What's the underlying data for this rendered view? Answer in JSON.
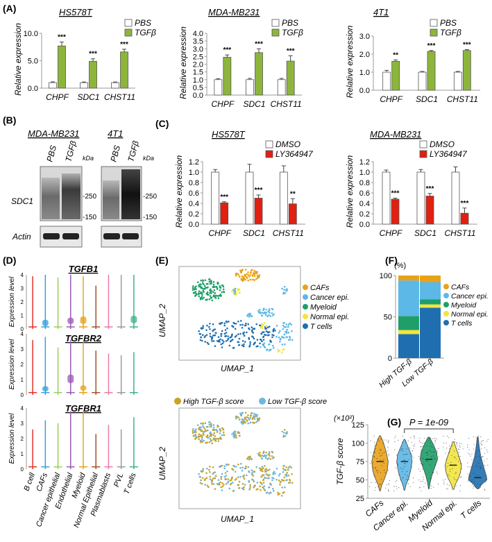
{
  "figure": {
    "panel_labels": {
      "A": "(A)",
      "B": "(B)",
      "C": "(C)",
      "D": "(D)",
      "E": "(E)",
      "F": "(F)",
      "G": "(G)"
    },
    "colors": {
      "pbs": "#ffffff",
      "tgf": "#8db53c",
      "dmso": "#ffffff",
      "ly": "#e02010",
      "caf": "#e8a21a",
      "cancer": "#5cb8e6",
      "myeloid": "#1f9e6a",
      "normal": "#f1e540",
      "tcell": "#1f6fb0",
      "vlnB": "#e8302a",
      "vlnCAF": "#35a0db",
      "vlnCancer": "#9bcd5b",
      "vlnEndo": "#9b59b6",
      "vlnMyeloid": "#e8a21a",
      "vlnNormal": "#a0522d",
      "vlnPlasma": "#e87aa8",
      "vlnPVL": "#9a9a9a",
      "vlnT": "#3fb08c"
    },
    "star_labels": [
      "***",
      "***",
      "***",
      "***",
      "***",
      "***",
      "**",
      "***",
      "***",
      "***",
      "***",
      "**",
      "***",
      "***",
      "***"
    ],
    "kda_labels": [
      "kDa",
      "kDa",
      "-250",
      "-150",
      "-250",
      "-150"
    ]
  },
  "chart_data": [
    {
      "type": "bar",
      "panel": "A",
      "title": "HS578T",
      "ylabel": "Relative expression",
      "categories": [
        "CHPF",
        "SDC1",
        "CHST11"
      ],
      "ylim": [
        0,
        10
      ],
      "yticks": [
        "0.0",
        "5.0",
        "10.0"
      ],
      "ytick_values": [
        0,
        5,
        10
      ],
      "series": [
        {
          "name": "PBS",
          "values": [
            1.0,
            1.0,
            1.0
          ],
          "errors": [
            0.15,
            0.12,
            0.12
          ]
        },
        {
          "name": "TGFβ",
          "values": [
            7.7,
            4.9,
            6.6
          ],
          "errors": [
            0.7,
            0.45,
            0.5
          ]
        }
      ],
      "stars": [
        "***",
        "***",
        "***"
      ]
    },
    {
      "type": "bar",
      "panel": "A",
      "title": "MDA-MB231",
      "ylabel": "Relative expression",
      "categories": [
        "CHPF",
        "SDC1",
        "CHST11"
      ],
      "ylim": [
        0,
        4
      ],
      "yticks": [
        "0.0",
        "0.5",
        "1.0",
        "1.5",
        "2.0",
        "2.5",
        "3.0",
        "3.5",
        "4.0"
      ],
      "ytick_values": [
        0,
        0.5,
        1,
        1.5,
        2,
        2.5,
        3,
        3.5,
        4
      ],
      "series": [
        {
          "name": "PBS",
          "values": [
            1.0,
            1.0,
            1.0
          ],
          "errors": [
            0.06,
            0.08,
            0.08
          ]
        },
        {
          "name": "TGFβ",
          "values": [
            2.45,
            2.75,
            2.2
          ],
          "errors": [
            0.15,
            0.25,
            0.35
          ]
        }
      ],
      "stars": [
        "***",
        "***",
        "***"
      ]
    },
    {
      "type": "bar",
      "panel": "A",
      "title": "4T1",
      "ylabel": "Relative expression",
      "categories": [
        "CHPF",
        "SDC1",
        "CHST11"
      ],
      "ylim": [
        0,
        3
      ],
      "yticks": [
        "0.0",
        "1.0",
        "2.0",
        "3.0"
      ],
      "ytick_values": [
        0,
        1,
        2,
        3
      ],
      "series": [
        {
          "name": "PBS",
          "values": [
            1.0,
            1.0,
            1.0
          ],
          "errors": [
            0.1,
            0.04,
            0.04
          ]
        },
        {
          "name": "TGFβ",
          "values": [
            1.6,
            2.15,
            2.2
          ],
          "errors": [
            0.08,
            0.05,
            0.05
          ]
        }
      ],
      "stars": [
        "**",
        "***",
        "***"
      ]
    },
    {
      "type": "bar",
      "panel": "C",
      "title": "HS578T",
      "ylabel": "Relative expression",
      "categories": [
        "CHPF",
        "SDC1",
        "CHST11"
      ],
      "ylim": [
        0,
        1.2
      ],
      "yticks": [
        "0.0",
        "0.2",
        "0.4",
        "0.6",
        "0.8",
        "1.0",
        "1.2"
      ],
      "ytick_values": [
        0,
        0.2,
        0.4,
        0.6,
        0.8,
        1.0,
        1.2
      ],
      "series": [
        {
          "name": "DMSO",
          "values": [
            1.0,
            1.0,
            1.0
          ],
          "errors": [
            0.05,
            0.15,
            0.12
          ]
        },
        {
          "name": "LY364947",
          "values": [
            0.41,
            0.5,
            0.39
          ],
          "errors": [
            0.02,
            0.06,
            0.1
          ]
        }
      ],
      "stars": [
        "***",
        "***",
        "**"
      ]
    },
    {
      "type": "bar",
      "panel": "C",
      "title": "MDA-MB231",
      "ylabel": "Relative expression",
      "categories": [
        "CHPF",
        "SDC1",
        "CHST11"
      ],
      "ylim": [
        0,
        1.2
      ],
      "yticks": [
        "0.0",
        "0.2",
        "0.4",
        "0.6",
        "0.8",
        "1.0",
        "1.2"
      ],
      "ytick_values": [
        0,
        0.2,
        0.4,
        0.6,
        0.8,
        1.0,
        1.2
      ],
      "series": [
        {
          "name": "DMSO",
          "values": [
            1.0,
            1.0,
            1.0
          ],
          "errors": [
            0.04,
            0.05,
            0.1
          ]
        },
        {
          "name": "LY364947",
          "values": [
            0.48,
            0.54,
            0.21
          ],
          "errors": [
            0.02,
            0.05,
            0.1
          ]
        }
      ],
      "stars": [
        "***",
        "***",
        "***"
      ]
    },
    {
      "type": "bar",
      "panel": "F",
      "title": "",
      "ylabel": "(%)",
      "categories": [
        "High TGF-β",
        "Low TGF-β"
      ],
      "ylim": [
        0,
        100
      ],
      "yticks": [
        "0",
        "50",
        "100"
      ],
      "ytick_values": [
        0,
        50,
        100
      ],
      "stacked": true,
      "series": [
        {
          "name": "T cells",
          "values": [
            29,
            61
          ]
        },
        {
          "name": "Normal epi.",
          "values": [
            5,
            4
          ]
        },
        {
          "name": "Myeloid",
          "values": [
            17,
            6
          ]
        },
        {
          "name": "Cancer epi.",
          "values": [
            43,
            21
          ]
        },
        {
          "name": "CAFs",
          "values": [
            6,
            8
          ]
        }
      ]
    },
    {
      "type": "violin",
      "panel": "G",
      "ylabel": "TGF-β score",
      "yunit": "(×10²)",
      "categories": [
        "CAFs",
        "Cancer epi.",
        "Myeloid",
        "Normal epi.",
        "T cells"
      ],
      "ylim": [
        25,
        125
      ],
      "yticks": [
        "25",
        "50",
        "75",
        "100",
        "125"
      ],
      "ytick_values": [
        25,
        50,
        75,
        100,
        125
      ],
      "medians": [
        75,
        75,
        78,
        70,
        53
      ],
      "annotation": "P = 1e-09",
      "comparison": [
        "Cancer epi.",
        "Normal epi."
      ]
    },
    {
      "type": "violin",
      "panel": "D",
      "ylabel": "Expression level",
      "categories": [
        "B cell",
        "CAFs",
        "Cancer epithelial",
        "Endothelial",
        "Myeloid",
        "Normal Epithelial",
        "Plasmablasts",
        "PVL",
        "T cells"
      ],
      "genes": [
        "TGFB1",
        "TGFBR2",
        "TGFBR1"
      ],
      "ylim": [
        0,
        4
      ],
      "yticks": [
        "0",
        "1",
        "2",
        "3",
        "4"
      ],
      "ytick_values": [
        0,
        1,
        2,
        3,
        4
      ]
    },
    {
      "type": "scatter",
      "panel": "E",
      "xlabel": "UMAP_1",
      "ylabel": "UMAP_2",
      "legend": [
        "CAFs",
        "Cancer epi.",
        "Myeloid",
        "Normal epi.",
        "T cells"
      ],
      "legend2": [
        "High TGF-β score",
        "Low TGF-β score"
      ]
    },
    {
      "type": "other",
      "panel": "B",
      "blots": [
        {
          "title": "MDA-MB231",
          "lanes": [
            "PBS",
            "TGFβ"
          ]
        },
        {
          "title": "4T1",
          "lanes": [
            "PBS",
            "TGFβ"
          ]
        }
      ],
      "row_labels": [
        "SDC1",
        "Actin"
      ]
    }
  ]
}
